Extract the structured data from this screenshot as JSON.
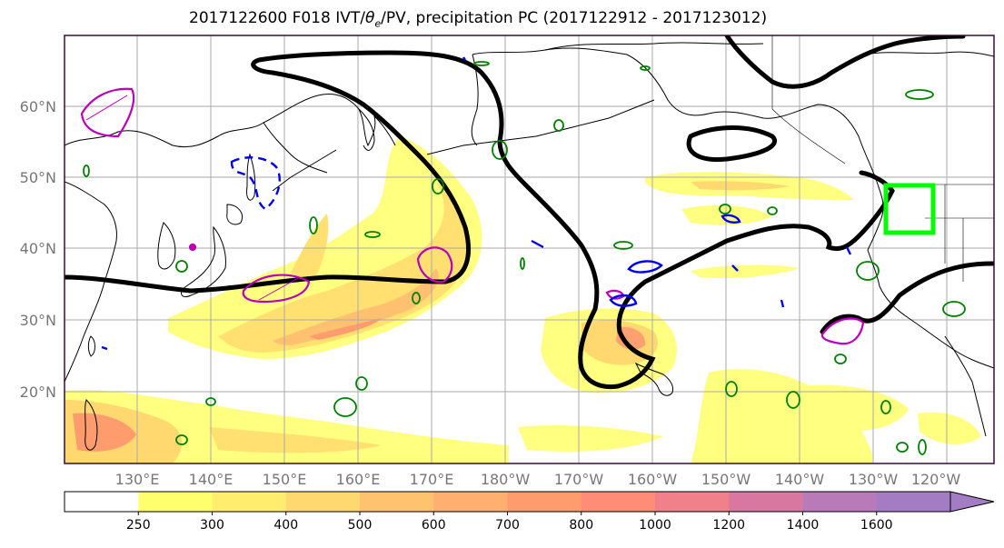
{
  "title": {
    "prefix": "2017122600 F018 IVT/",
    "theta": "θ",
    "theta_sub": "e",
    "suffix": "/PV, precipitation PC (2017122912 - 2017123012)"
  },
  "map": {
    "lat_labels": [
      "60°N",
      "50°N",
      "40°N",
      "30°N",
      "20°N"
    ],
    "lon_labels": [
      "130°E",
      "140°E",
      "150°E",
      "160°E",
      "170°E",
      "180°W",
      "170°W",
      "160°W",
      "150°W",
      "140°W",
      "130°W",
      "120°W"
    ],
    "colors": {
      "pv_contour": "#000000",
      "theta_e_positive": "#008000",
      "anomaly_magenta": "#bb00bb",
      "anomaly_blue": "#0000ee",
      "target_box": "#00ff00",
      "gridline": "#aaaaaa",
      "frame": "#3a0a3a"
    }
  },
  "colorbar": {
    "ticks": [
      "250",
      "300",
      "400",
      "500",
      "600",
      "700",
      "800",
      "1000",
      "1200",
      "1400",
      "1600"
    ],
    "colors": [
      "#ffffff",
      "#ffff6e",
      "#ffed6e",
      "#ffd870",
      "#ffc370",
      "#ffb070",
      "#ff9c6e",
      "#ff8c76",
      "#f0808a",
      "#d878a0",
      "#b87ab8",
      "#a47cc4"
    ]
  }
}
